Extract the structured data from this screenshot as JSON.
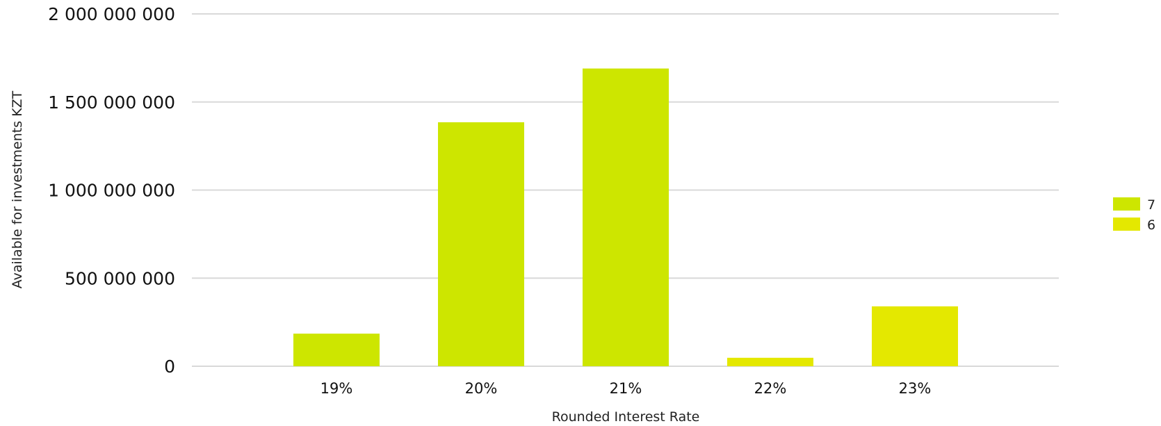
{
  "chart_data": {
    "type": "bar",
    "categories": [
      "19%",
      "20%",
      "21%",
      "22%",
      "23%"
    ],
    "series": [
      {
        "name": "7",
        "color": "#cde600",
        "values": [
          185000000,
          1385000000,
          1690000000,
          null,
          null
        ]
      },
      {
        "name": "6",
        "color": "#e4e800",
        "values": [
          null,
          null,
          null,
          48000000,
          340000000
        ]
      }
    ],
    "title": "",
    "xlabel": "Rounded Interest Rate",
    "ylabel": "Available for investments KZT",
    "ylim": [
      0,
      2000000000
    ],
    "yticks": [
      0,
      500000000,
      1000000000,
      1500000000,
      2000000000
    ],
    "ytick_labels": [
      "0",
      "500 000 000",
      "1 000 000 000",
      "1 500 000 000",
      "2 000 000 000"
    ],
    "grid": true,
    "legend": "right"
  }
}
